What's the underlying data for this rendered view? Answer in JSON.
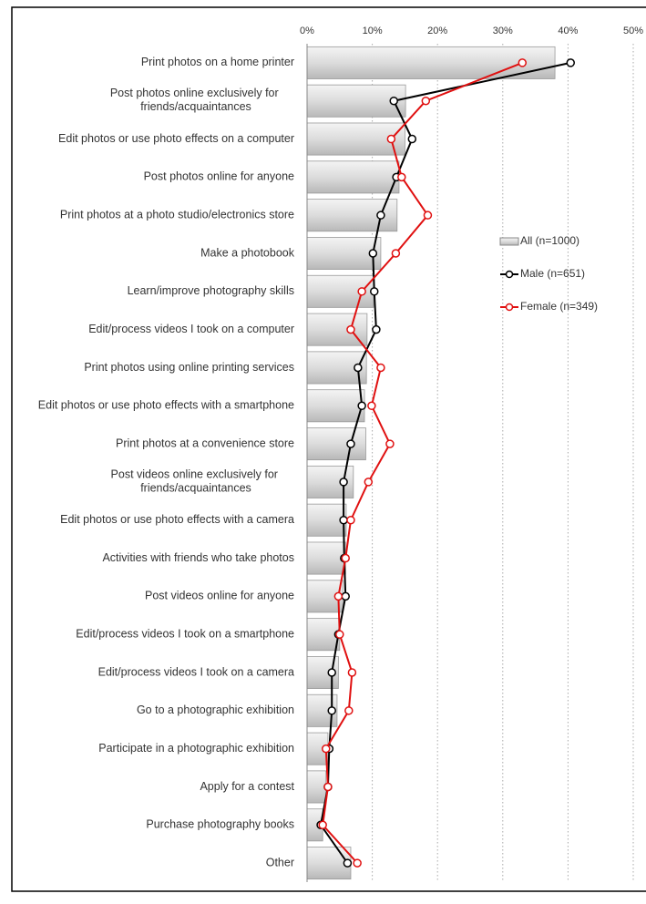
{
  "chart_data": {
    "type": "bar_line",
    "orientation": "horizontal",
    "categories": [
      "Print photos on a home printer",
      "Post photos online exclusively for friends/acquaintances",
      "Edit photos or use photo effects on a computer",
      "Post photos online for anyone",
      "Print photos at a photo studio/electronics store",
      "Make a photobook",
      "Learn/improve photography skills",
      "Edit/process videos I took on a computer",
      "Print photos using online printing services",
      "Edit photos or use photo effects with a smartphone",
      "Print photos at a convenience store",
      "Post videos online exclusively for friends/acquaintances",
      "Edit photos or use photo effects with a camera",
      "Activities with friends who take photos",
      "Post videos online for anyone",
      "Edit/process videos I took on a smartphone",
      "Edit/process videos I took on a camera",
      "Go to a photographic exhibition",
      "Participate in a photographic exhibition",
      "Apply for a contest",
      "Purchase photography books",
      "Other"
    ],
    "series": [
      {
        "name": "All (n=1000)",
        "kind": "bar",
        "color": "#d0d0d0",
        "values": [
          38,
          15.1,
          15,
          14.1,
          13.8,
          11.3,
          10.2,
          9.2,
          9.1,
          8.8,
          9.0,
          7.1,
          6.0,
          5.9,
          5.5,
          5.0,
          4.8,
          4.6,
          3.2,
          2.9,
          2.4,
          6.7
        ]
      },
      {
        "name": "Male (n=651)",
        "kind": "line",
        "color": "#000000",
        "values": [
          40.4,
          13.3,
          16.1,
          13.7,
          11.3,
          10.1,
          10.3,
          10.6,
          7.8,
          8.4,
          6.7,
          5.6,
          5.6,
          5.7,
          5.9,
          4.8,
          3.8,
          3.8,
          3.4,
          3.2,
          2.1,
          6.2
        ]
      },
      {
        "name": "Female (n=349)",
        "kind": "line",
        "color": "#e01010",
        "values": [
          33,
          18.2,
          12.9,
          14.5,
          18.5,
          13.6,
          8.4,
          6.7,
          11.3,
          9.9,
          12.7,
          9.4,
          6.7,
          5.9,
          4.8,
          5.0,
          6.9,
          6.4,
          2.9,
          3.2,
          2.4,
          7.7
        ]
      }
    ],
    "xlim": [
      0,
      50
    ],
    "xticks": [
      {
        "value": 0,
        "label": "0%"
      },
      {
        "value": 10,
        "label": "10%"
      },
      {
        "value": 20,
        "label": "20%"
      },
      {
        "value": 30,
        "label": "30%"
      },
      {
        "value": 40,
        "label": "40%"
      },
      {
        "value": 50,
        "label": "50%"
      }
    ],
    "grid": true
  }
}
